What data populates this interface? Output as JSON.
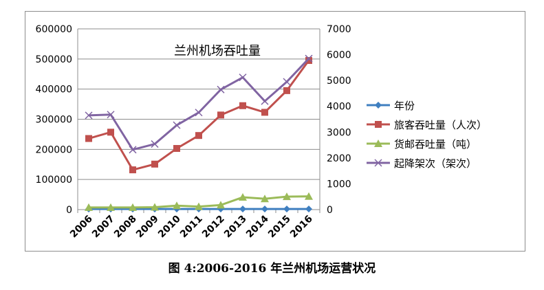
{
  "caption": "图 4:2006-2016 年兰州机场运营状况",
  "chart_data": {
    "type": "line",
    "title": "兰州机场吞吐量",
    "categories": [
      "2006",
      "2007",
      "2008",
      "2009",
      "2010",
      "2011",
      "2012",
      "2013",
      "2014",
      "2015",
      "2016"
    ],
    "y_left": {
      "ylim": [
        0,
        600000
      ],
      "ticks": [
        0,
        100000,
        200000,
        300000,
        400000,
        500000,
        600000
      ]
    },
    "y_right": {
      "ylim": [
        0,
        7000
      ],
      "ticks": [
        0,
        1000,
        2000,
        3000,
        4000,
        5000,
        6000,
        7000
      ]
    },
    "grid": true,
    "legend_position": "right",
    "series": [
      {
        "name": "年份",
        "axis": "left",
        "color": "#3f7fc0",
        "marker": "diamond",
        "values": [
          2006,
          2007,
          2008,
          2009,
          2010,
          2011,
          2012,
          2013,
          2014,
          2015,
          2016
        ]
      },
      {
        "name": "旅客吞吐量（人次）",
        "axis": "left",
        "color": "#c0504d",
        "marker": "square",
        "values": [
          236000,
          257000,
          132000,
          151000,
          203000,
          246000,
          314000,
          345000,
          323000,
          395000,
          495000
        ]
      },
      {
        "name": "货邮吞吐量（吨）",
        "axis": "left",
        "color": "#9bbb59",
        "marker": "triangle",
        "values": [
          7000,
          7000,
          7000,
          8000,
          13000,
          10000,
          15000,
          41000,
          36000,
          43000,
          44000
        ]
      },
      {
        "name": "起降架次（架次）",
        "axis": "right",
        "color": "#8064a2",
        "marker": "x",
        "values": [
          3650,
          3680,
          2320,
          2540,
          3270,
          3760,
          4650,
          5120,
          4200,
          4950,
          5850
        ]
      }
    ]
  }
}
